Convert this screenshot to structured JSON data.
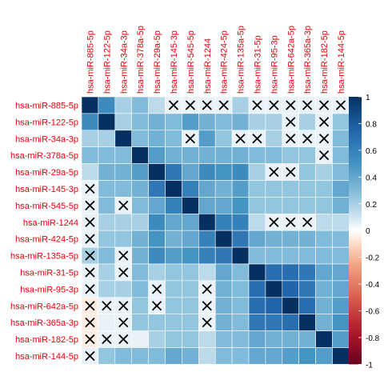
{
  "chart_data": {
    "type": "heatmap",
    "title": "",
    "labels": [
      "hsa-miR-885-5p",
      "hsa-miR-122-5p",
      "hsa-miR-34a-3p",
      "hsa-miR-378a-5p",
      "hsa-miR-29a-5p",
      "hsa-miR-145-3p",
      "hsa-miR-545-5p",
      "hsa-miR-1244",
      "hsa-miR-424-5p",
      "hsa-miR-135a-5p",
      "hsa-miR-31-5p",
      "hsa-miR-95-3p",
      "hsa-miR-642a-5p",
      "hsa-miR-365a-3p",
      "hsa-miR-182-5p",
      "hsa-miR-144-5p"
    ],
    "values": [
      [
        1.0,
        0.55,
        0.2,
        0.3,
        0.15,
        0.05,
        0.05,
        0.05,
        0.05,
        0.2,
        0.05,
        0.05,
        0.05,
        0.05,
        0.05,
        0.05
      ],
      [
        0.55,
        1.0,
        0.2,
        0.3,
        0.35,
        0.3,
        0.45,
        0.35,
        0.3,
        0.35,
        0.2,
        0.2,
        0.05,
        0.2,
        0.05,
        0.25
      ],
      [
        0.2,
        0.2,
        1.0,
        0.3,
        0.35,
        0.3,
        0.05,
        0.45,
        0.25,
        0.05,
        0.05,
        0.2,
        0.05,
        0.05,
        0.05,
        0.3
      ],
      [
        0.3,
        0.3,
        0.3,
        1.0,
        0.45,
        0.35,
        0.35,
        0.35,
        0.35,
        0.35,
        0.3,
        0.3,
        0.25,
        0.25,
        0.05,
        0.3
      ],
      [
        0.15,
        0.35,
        0.35,
        0.45,
        1.0,
        0.65,
        0.4,
        0.55,
        0.5,
        0.55,
        0.2,
        0.05,
        0.05,
        0.25,
        0.2,
        0.3
      ],
      [
        0.05,
        0.3,
        0.3,
        0.35,
        0.65,
        1.0,
        0.6,
        0.4,
        0.35,
        0.45,
        0.25,
        0.25,
        0.25,
        0.25,
        0.25,
        0.4
      ],
      [
        0.05,
        0.3,
        0.05,
        0.3,
        0.4,
        0.6,
        1.0,
        0.4,
        0.4,
        0.5,
        0.25,
        0.25,
        0.25,
        0.25,
        0.25,
        0.35
      ],
      [
        0.05,
        0.2,
        0.2,
        0.2,
        0.55,
        0.4,
        0.4,
        1.0,
        0.6,
        0.6,
        0.15,
        0.05,
        0.05,
        0.05,
        0.15,
        0.15
      ],
      [
        0.05,
        0.25,
        0.25,
        0.35,
        0.5,
        0.35,
        0.4,
        0.6,
        1.0,
        0.65,
        0.4,
        0.35,
        0.35,
        0.35,
        0.3,
        0.3
      ],
      [
        0.2,
        0.3,
        0.05,
        0.35,
        0.55,
        0.45,
        0.5,
        0.6,
        0.65,
        1.0,
        0.3,
        0.3,
        0.3,
        0.3,
        0.3,
        0.3
      ],
      [
        0.05,
        0.2,
        0.05,
        0.3,
        0.2,
        0.25,
        0.25,
        0.15,
        0.4,
        0.3,
        1.0,
        0.7,
        0.7,
        0.65,
        0.4,
        0.4
      ],
      [
        0.05,
        0.2,
        0.2,
        0.3,
        0.05,
        0.25,
        0.25,
        0.05,
        0.35,
        0.3,
        0.7,
        1.0,
        0.75,
        0.65,
        0.35,
        0.4
      ],
      [
        -0.05,
        0.05,
        0.05,
        0.25,
        0.05,
        0.25,
        0.25,
        0.05,
        0.35,
        0.3,
        0.7,
        0.75,
        1.0,
        0.7,
        0.35,
        0.45
      ],
      [
        -0.05,
        0.05,
        0.05,
        0.25,
        0.25,
        0.25,
        0.25,
        0.05,
        0.35,
        0.3,
        0.65,
        0.65,
        0.7,
        1.0,
        0.35,
        0.5
      ],
      [
        -0.05,
        0.05,
        0.05,
        0.05,
        0.2,
        0.25,
        0.25,
        0.15,
        0.3,
        0.3,
        0.4,
        0.35,
        0.35,
        0.35,
        1.0,
        0.45
      ],
      [
        0.05,
        0.25,
        0.3,
        0.3,
        0.3,
        0.4,
        0.35,
        0.15,
        0.3,
        0.3,
        0.4,
        0.4,
        0.45,
        0.5,
        0.45,
        1.0
      ]
    ],
    "crossed": [
      [
        0,
        5
      ],
      [
        0,
        6
      ],
      [
        0,
        7
      ],
      [
        0,
        8
      ],
      [
        0,
        10
      ],
      [
        0,
        11
      ],
      [
        0,
        12
      ],
      [
        0,
        13
      ],
      [
        0,
        14
      ],
      [
        0,
        15
      ],
      [
        1,
        12
      ],
      [
        1,
        14
      ],
      [
        2,
        6
      ],
      [
        2,
        9
      ],
      [
        2,
        10
      ],
      [
        2,
        12
      ],
      [
        2,
        13
      ],
      [
        2,
        14
      ],
      [
        3,
        14
      ],
      [
        4,
        11
      ],
      [
        4,
        12
      ],
      [
        5,
        0
      ],
      [
        6,
        0
      ],
      [
        6,
        2
      ],
      [
        7,
        0
      ],
      [
        7,
        11
      ],
      [
        7,
        12
      ],
      [
        7,
        13
      ],
      [
        8,
        0
      ],
      [
        9,
        0
      ],
      [
        9,
        2
      ],
      [
        10,
        0
      ],
      [
        10,
        2
      ],
      [
        11,
        0
      ],
      [
        11,
        4
      ],
      [
        11,
        7
      ],
      [
        12,
        0
      ],
      [
        12,
        1
      ],
      [
        12,
        2
      ],
      [
        12,
        4
      ],
      [
        12,
        7
      ],
      [
        13,
        0
      ],
      [
        13,
        2
      ],
      [
        13,
        7
      ],
      [
        14,
        0
      ],
      [
        14,
        1
      ],
      [
        14,
        2
      ],
      [
        15,
        0
      ]
    ],
    "colorbar": {
      "ticks": [
        "1",
        "0.8",
        "0.6",
        "0.4",
        "0.2",
        "0",
        "-0.2",
        "-0.4",
        "-0.6",
        "-0.8",
        "-1"
      ],
      "range": [
        -1,
        1
      ]
    },
    "colors": {
      "label": "#e8000b",
      "positive_end": "#053061",
      "negative_end": "#67001f",
      "midpoint": "#ffffff",
      "cross": "#000000"
    }
  }
}
